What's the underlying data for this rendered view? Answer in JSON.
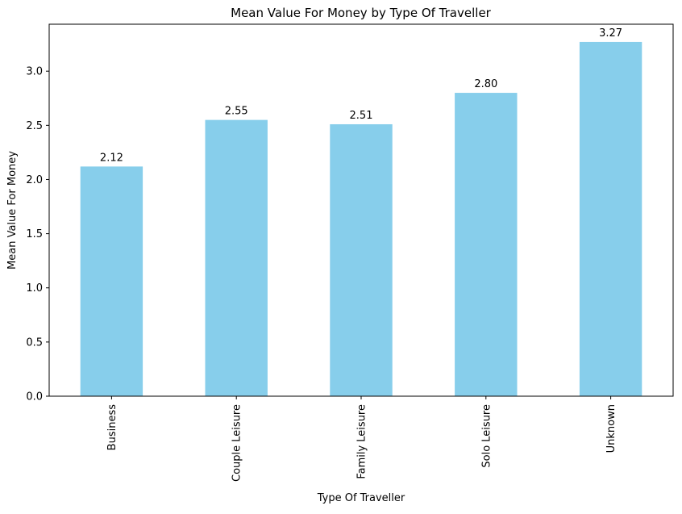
{
  "chart_data": {
    "type": "bar",
    "title": "Mean Value For Money by Type Of Traveller",
    "xlabel": "Type Of Traveller",
    "ylabel": "Mean Value For Money",
    "categories": [
      "Business",
      "Couple Leisure",
      "Family Leisure",
      "Solo Leisure",
      "Unknown"
    ],
    "values": [
      2.12,
      2.55,
      2.51,
      2.8,
      3.27
    ],
    "value_labels": [
      "2.12",
      "2.55",
      "2.51",
      "2.80",
      "3.27"
    ],
    "yticks": [
      "0.0",
      "0.5",
      "1.0",
      "1.5",
      "2.0",
      "2.5",
      "3.0"
    ],
    "ylim": [
      0,
      3.4335
    ],
    "bar_color": "#87ceeb",
    "grid": false,
    "legend": false
  }
}
